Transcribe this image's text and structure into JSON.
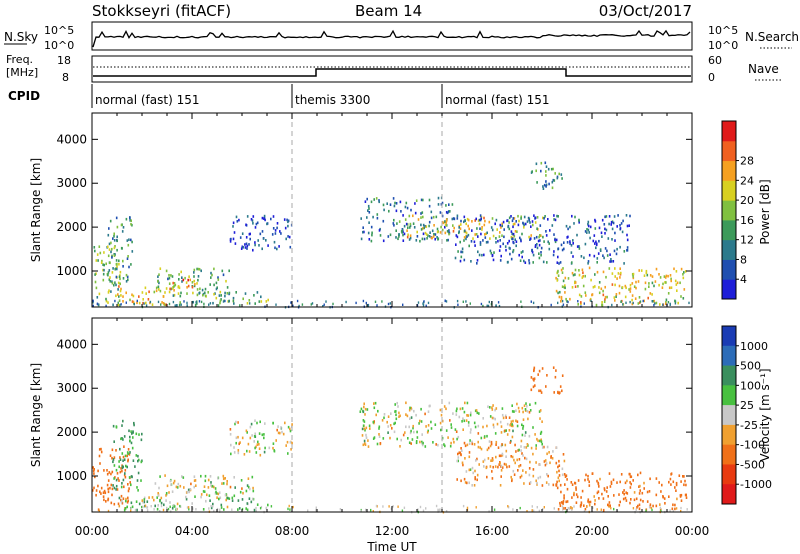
{
  "header": {
    "station": "Stokkseyri (fitACF)",
    "beam": "Beam 14",
    "date": "03/Oct/2017"
  },
  "noise_panel": {
    "left_label": "N.Sky",
    "right_label": "N.Search",
    "left_ticks": [
      "10^5",
      "10^0"
    ],
    "right_ticks": [
      "10^5",
      "10^0"
    ]
  },
  "freq_panel": {
    "left_label_1": "Freq.",
    "left_label_2": "[MHz]",
    "right_label": "Nave",
    "left_ticks": [
      "18",
      "8"
    ],
    "right_ticks": [
      "60",
      "0"
    ]
  },
  "cpid": {
    "label": "CPID",
    "segments": [
      {
        "name": "normal (fast) 151",
        "start_hour": 0
      },
      {
        "name": "themis 3300",
        "start_hour": 8
      },
      {
        "name": "normal (fast) 151",
        "start_hour": 14
      }
    ]
  },
  "time_axis": {
    "label": "Time UT",
    "ticks": [
      "00:00",
      "04:00",
      "08:00",
      "12:00",
      "16:00",
      "20:00",
      "00:00"
    ]
  },
  "chart_data": [
    {
      "type": "heatmap",
      "name": "power",
      "ylabel": "Slant Range [km]",
      "xlabel": "Time UT",
      "xlim": [
        0,
        24
      ],
      "ylim": [
        180,
        4600
      ],
      "yticks": [
        "1000",
        "2000",
        "3000",
        "4000"
      ],
      "colorbar_label": "Power [dB]",
      "colorbar_ticks": [
        "4",
        "8",
        "12",
        "16",
        "20",
        "24",
        "28"
      ],
      "colorbar_colors": [
        "#1e1ed8",
        "#1f4fb0",
        "#2c7a8c",
        "#3c9a5a",
        "#80c040",
        "#d8d020",
        "#f5a020",
        "#f06020",
        "#e01a1a"
      ],
      "colorbar_range": [
        0,
        30
      ],
      "echo_regions": [
        {
          "t0": 0.0,
          "t1": 1.2,
          "r0": 250,
          "r1": 1600,
          "value": 14
        },
        {
          "t0": 0.6,
          "t1": 1.6,
          "r0": 700,
          "r1": 2300,
          "value": 10
        },
        {
          "t0": 1.0,
          "t1": 3.5,
          "r0": 250,
          "r1": 700,
          "value": 20
        },
        {
          "t0": 2.5,
          "t1": 5.5,
          "r0": 450,
          "r1": 1100,
          "value": 12
        },
        {
          "t0": 3.0,
          "t1": 4.3,
          "r0": 600,
          "r1": 850,
          "value": 22
        },
        {
          "t0": 4.0,
          "t1": 7.2,
          "r0": 250,
          "r1": 550,
          "value": 14
        },
        {
          "t0": 5.5,
          "t1": 8.0,
          "r0": 1500,
          "r1": 2300,
          "value": 4
        },
        {
          "t0": 10.7,
          "t1": 14.5,
          "r0": 1700,
          "r1": 2700,
          "value": 8
        },
        {
          "t0": 12.5,
          "t1": 18.0,
          "r0": 1750,
          "r1": 2300,
          "value": 18
        },
        {
          "t0": 14.5,
          "t1": 21.5,
          "r0": 1200,
          "r1": 2300,
          "value": 6
        },
        {
          "t0": 18.5,
          "t1": 23.8,
          "r0": 250,
          "r1": 1100,
          "value": 18
        },
        {
          "t0": 17.5,
          "t1": 18.8,
          "r0": 2900,
          "r1": 3500,
          "value": 10
        }
      ]
    },
    {
      "type": "heatmap",
      "name": "velocity",
      "ylabel": "Slant Range [km]",
      "xlabel": "Time UT",
      "xlim": [
        0,
        24
      ],
      "ylim": [
        180,
        4600
      ],
      "yticks": [
        "1000",
        "2000",
        "3000",
        "4000"
      ],
      "colorbar_label": "Velocity [m s⁻¹]",
      "colorbar_ticks": [
        "1000",
        "500",
        "100",
        "25",
        "-25",
        "-100",
        "-500",
        "-1000"
      ],
      "colorbar_colors": [
        "#1a3cb4",
        "#2c6cb8",
        "#3a8f5e",
        "#48c040",
        "#c8c8c8",
        "#f0a030",
        "#f07018",
        "#e83a10",
        "#e01a1a"
      ],
      "echo_regions": [
        {
          "t0": 0.0,
          "t1": 1.5,
          "r0": 250,
          "r1": 1700,
          "value": -300
        },
        {
          "t0": 0.8,
          "t1": 2.0,
          "r0": 700,
          "r1": 2300,
          "value": 150
        },
        {
          "t0": 1.0,
          "t1": 7.2,
          "r0": 250,
          "r1": 550,
          "value": 60
        },
        {
          "t0": 2.5,
          "t1": 6.5,
          "r0": 500,
          "r1": 1050,
          "value": 0
        },
        {
          "t0": 5.5,
          "t1": 8.0,
          "r0": 1500,
          "r1": 2300,
          "value": 0
        },
        {
          "t0": 10.7,
          "t1": 18.0,
          "r0": 1700,
          "r1": 2700,
          "value": 0
        },
        {
          "t0": 14.5,
          "t1": 19.0,
          "r0": 800,
          "r1": 1800,
          "value": -80
        },
        {
          "t0": 18.5,
          "t1": 23.8,
          "r0": 250,
          "r1": 1100,
          "value": -200
        },
        {
          "t0": 17.5,
          "t1": 18.8,
          "r0": 2900,
          "r1": 3500,
          "value": -300
        }
      ]
    }
  ]
}
